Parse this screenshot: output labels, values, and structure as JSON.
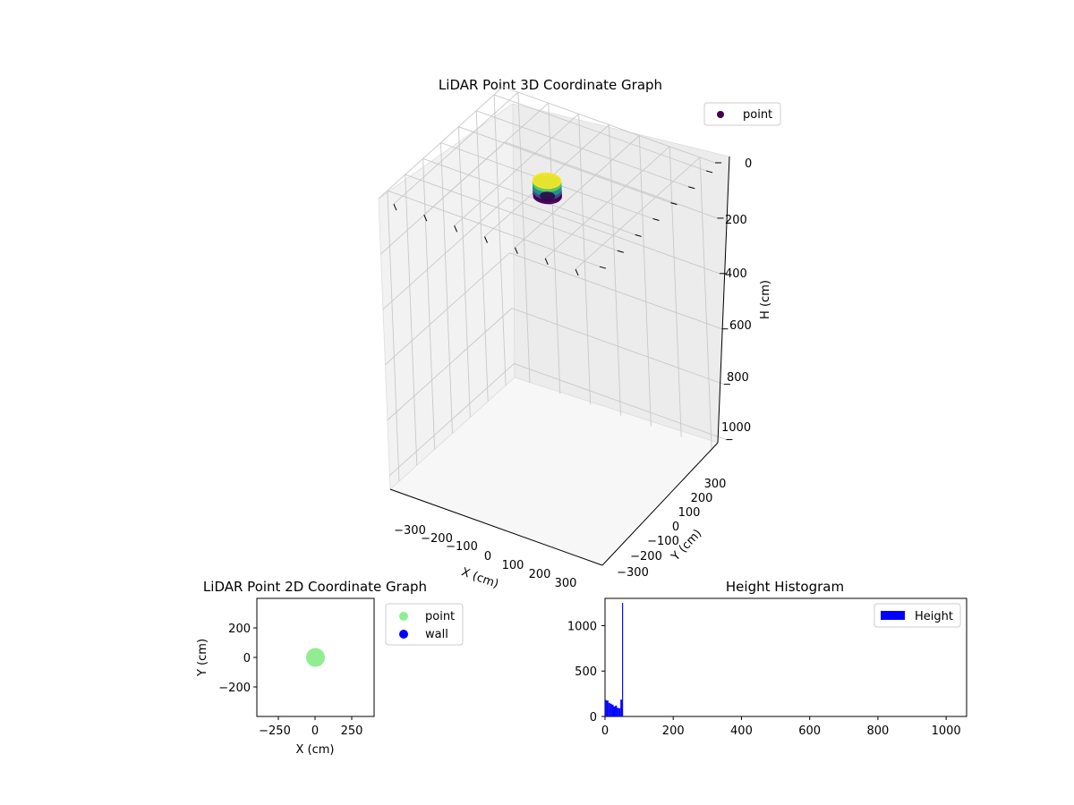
{
  "chart_data": [
    {
      "type": "scatter3d",
      "title": "LiDAR Point 3D Coordinate Graph",
      "xlabel": "X (cm)",
      "ylabel": "Y (cm)",
      "zlabel": "H (cm)",
      "xticks": [
        "−300",
        "−200",
        "−100",
        "0",
        "100",
        "200",
        "300"
      ],
      "yticks": [
        "−300",
        "−200",
        "−100",
        "0",
        "100",
        "200",
        "300"
      ],
      "zticks": [
        "0",
        "200",
        "400",
        "600",
        "800",
        "1000"
      ],
      "xlim": [
        -350,
        350
      ],
      "ylim": [
        -350,
        350
      ],
      "zlim": [
        0,
        1050
      ],
      "z_inverted": true,
      "legend": {
        "placement": "top-right",
        "entries": [
          {
            "label": "point",
            "color": "#440154"
          }
        ]
      },
      "cluster": {
        "center_x": 0,
        "center_y": 0,
        "radius": 40,
        "h_min": 0,
        "h_max": 55
      },
      "colormap": [
        "#440154",
        "#3b528b",
        "#21918c",
        "#5ec962",
        "#fde725"
      ],
      "grid": true
    },
    {
      "type": "scatter",
      "title": "LiDAR Point 2D Coordinate Graph",
      "xlabel": "X (cm)",
      "ylabel": "Y (cm)",
      "xticks": [
        "−250",
        "0",
        "250"
      ],
      "yticks": [
        "200",
        "0",
        "−200"
      ],
      "xlim": [
        -400,
        400
      ],
      "ylim": [
        -400,
        400
      ],
      "series": [
        {
          "name": "point",
          "color": "#90ee90",
          "center": [
            0,
            0
          ],
          "radius": 40
        },
        {
          "name": "wall",
          "color": "#0000ff",
          "center": null,
          "radius": 0
        }
      ],
      "legend": {
        "placement": "outside-right"
      },
      "grid": false
    },
    {
      "type": "bar",
      "title": "Height Histogram",
      "xticks": [
        "0",
        "200",
        "400",
        "600",
        "800",
        "1000"
      ],
      "yticks": [
        "0",
        "500",
        "1000"
      ],
      "xlim": [
        0,
        1060
      ],
      "ylim": [
        0,
        1300
      ],
      "series": [
        {
          "name": "Height",
          "color": "#0000ff",
          "bins": [
            [
              0,
              5,
              180
            ],
            [
              5,
              10,
              175
            ],
            [
              10,
              15,
              150
            ],
            [
              15,
              20,
              140
            ],
            [
              20,
              25,
              130
            ],
            [
              25,
              30,
              110
            ],
            [
              30,
              35,
              120
            ],
            [
              35,
              40,
              95
            ],
            [
              40,
              45,
              90
            ],
            [
              45,
              50,
              185
            ],
            [
              50,
              53,
              1250
            ]
          ]
        }
      ],
      "legend": {
        "placement": "top-right"
      },
      "grid": false
    }
  ]
}
